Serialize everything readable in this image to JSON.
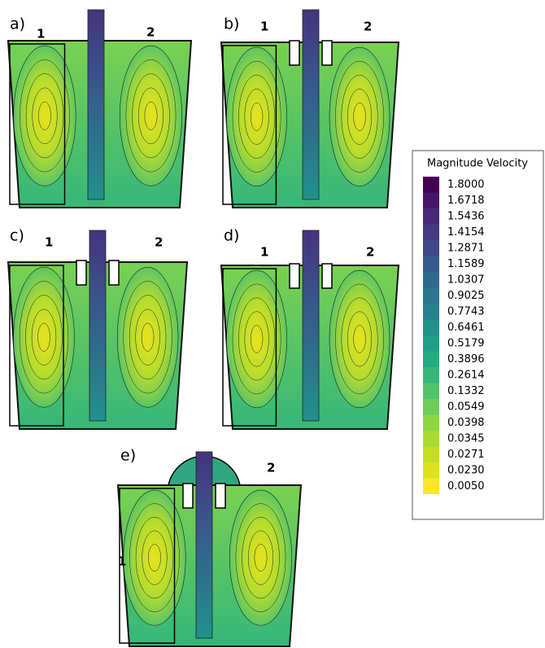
{
  "panels": [
    {
      "label": "a)",
      "zones": [
        "1",
        "2"
      ]
    },
    {
      "label": "b)",
      "zones": [
        "1",
        "2"
      ]
    },
    {
      "label": "c)",
      "zones": [
        "1",
        "2"
      ]
    },
    {
      "label": "d)",
      "zones": [
        "1",
        "2"
      ]
    },
    {
      "label": "e)",
      "zones": [
        "1",
        "2"
      ]
    }
  ],
  "legend": {
    "title": "Magnitude Velocity",
    "labels": [
      "1.8000",
      "1.6718",
      "1.5436",
      "1.4154",
      "1.2871",
      "1.1589",
      "1.0307",
      "0.9025",
      "0.7743",
      "0.6461",
      "0.5179",
      "0.3896",
      "0.2614",
      "0.1332",
      "0.0549",
      "0.0398",
      "0.0345",
      "0.0271",
      "0.0230",
      "0.0050"
    ],
    "colors": [
      "#440154",
      "#481668",
      "#482878",
      "#443983",
      "#3e4a89",
      "#375a8c",
      "#31688e",
      "#2b758e",
      "#26828e",
      "#21918c",
      "#1f9e89",
      "#25ab82",
      "#35b779",
      "#4ec36b",
      "#6ccd5a",
      "#8ed645",
      "#a8db34",
      "#c2df23",
      "#dde318",
      "#fde725"
    ]
  }
}
